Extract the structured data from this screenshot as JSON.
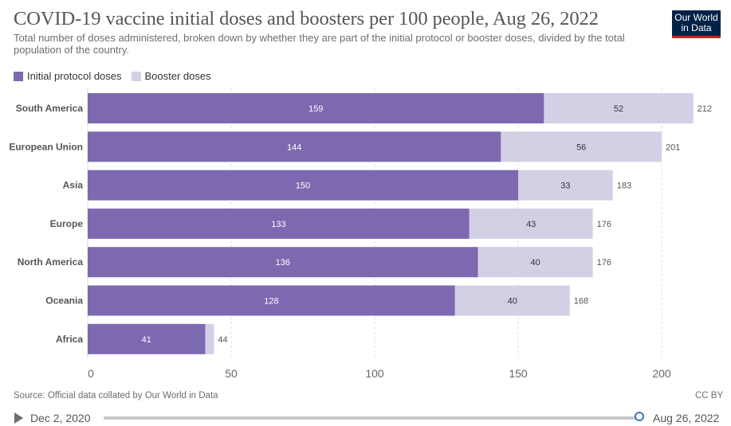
{
  "header": {
    "title": "COVID-19 vaccine initial doses and boosters per 100 people, Aug 26, 2022",
    "subtitle": "Total number of doses administered, broken down by whether they are part of the initial protocol or booster doses, divided by the total population of the country.",
    "logo_line1": "Our World",
    "logo_line2": "in Data"
  },
  "colors": {
    "initial": "#7d69b0",
    "booster": "#d3d0e6",
    "grid": "#dcdcdc"
  },
  "chart_data": {
    "type": "bar",
    "orientation": "horizontal",
    "stacked": true,
    "title": "COVID-19 vaccine initial doses and boosters per 100 people, Aug 26, 2022",
    "categories": [
      "South America",
      "European Union",
      "Asia",
      "Europe",
      "North America",
      "Oceania",
      "Africa"
    ],
    "series": [
      {
        "name": "Initial protocol doses",
        "values": [
          159,
          144,
          150,
          133,
          136,
          128,
          41
        ]
      },
      {
        "name": "Booster doses",
        "values": [
          52,
          56,
          33,
          43,
          40,
          40,
          3
        ]
      }
    ],
    "segment_labels": {
      "initial": [
        "159",
        "144",
        "150",
        "133",
        "136",
        "128",
        "41"
      ],
      "booster": [
        "52",
        "56",
        "33",
        "43",
        "40",
        "40",
        ""
      ]
    },
    "totals": [
      212,
      201,
      183,
      176,
      176,
      168,
      44
    ],
    "xlim": [
      0,
      212
    ],
    "xticks": [
      0,
      50,
      100,
      150,
      200
    ],
    "grid": true
  },
  "footer": {
    "source": "Source: Official data collated by Our World in Data",
    "license": "CC BY"
  },
  "timeline": {
    "start_label": "Dec 2, 2020",
    "end_label": "Aug 26, 2022"
  }
}
